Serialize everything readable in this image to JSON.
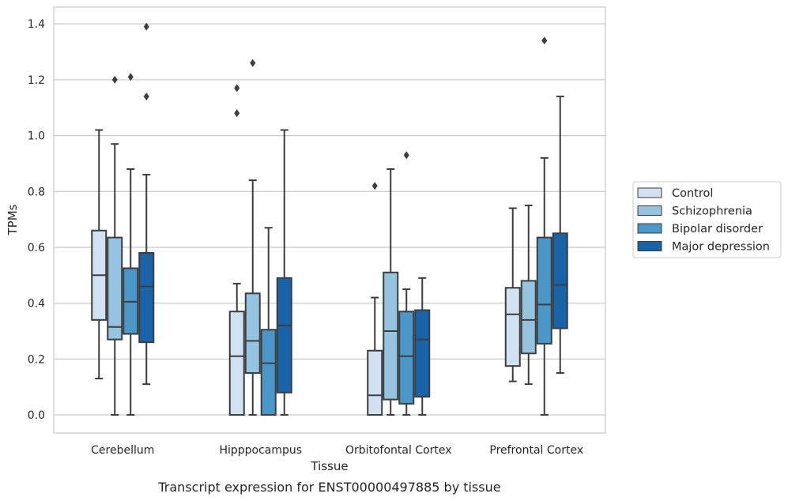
{
  "caption": "Transcript expression for ENST00000497885 by tissue",
  "chart_data": {
    "type": "box",
    "xlabel": "Tissue",
    "ylabel": "TPMs",
    "ylim": [
      -0.065,
      1.46
    ],
    "yticks": [
      0.0,
      0.2,
      0.4,
      0.6,
      0.8,
      1.0,
      1.2,
      1.4
    ],
    "grid": "horizontal",
    "legend_position": "right",
    "categories": [
      "Cerebellum",
      "Hipppocampus",
      "Orbitofontal Cortex",
      "Prefrontal Cortex"
    ],
    "series": [
      {
        "name": "Control",
        "color": "#d0e1f2",
        "boxes": [
          {
            "whislo": 0.13,
            "q1": 0.34,
            "med": 0.5,
            "q3": 0.66,
            "whishi": 1.02,
            "fliers": []
          },
          {
            "whislo": 0.0,
            "q1": 0.0,
            "med": 0.21,
            "q3": 0.37,
            "whishi": 0.47,
            "fliers": [
              1.08,
              1.17
            ]
          },
          {
            "whislo": 0.0,
            "q1": 0.0,
            "med": 0.07,
            "q3": 0.23,
            "whishi": 0.42,
            "fliers": [
              0.82
            ]
          },
          {
            "whislo": 0.12,
            "q1": 0.175,
            "med": 0.36,
            "q3": 0.455,
            "whishi": 0.74,
            "fliers": []
          }
        ]
      },
      {
        "name": "Schizophrenia",
        "color": "#94c4df",
        "boxes": [
          {
            "whislo": 0.0,
            "q1": 0.27,
            "med": 0.315,
            "q3": 0.635,
            "whishi": 0.97,
            "fliers": [
              1.2
            ]
          },
          {
            "whislo": 0.0,
            "q1": 0.15,
            "med": 0.265,
            "q3": 0.435,
            "whishi": 0.84,
            "fliers": [
              1.26
            ]
          },
          {
            "whislo": 0.0,
            "q1": 0.055,
            "med": 0.3,
            "q3": 0.51,
            "whishi": 0.88,
            "fliers": []
          },
          {
            "whislo": 0.11,
            "q1": 0.22,
            "med": 0.34,
            "q3": 0.48,
            "whishi": 0.75,
            "fliers": []
          }
        ]
      },
      {
        "name": "Bipolar disorder",
        "color": "#4a98c9",
        "boxes": [
          {
            "whislo": 0.0,
            "q1": 0.29,
            "med": 0.405,
            "q3": 0.525,
            "whishi": 0.88,
            "fliers": [
              1.21
            ]
          },
          {
            "whislo": 0.0,
            "q1": 0.0,
            "med": 0.185,
            "q3": 0.305,
            "whishi": 0.67,
            "fliers": []
          },
          {
            "whislo": 0.0,
            "q1": 0.04,
            "med": 0.21,
            "q3": 0.37,
            "whishi": 0.45,
            "fliers": [
              0.93
            ]
          },
          {
            "whislo": 0.0,
            "q1": 0.255,
            "med": 0.395,
            "q3": 0.635,
            "whishi": 0.92,
            "fliers": [
              1.34
            ]
          }
        ]
      },
      {
        "name": "Major depression",
        "color": "#1764ab",
        "boxes": [
          {
            "whislo": 0.11,
            "q1": 0.26,
            "med": 0.46,
            "q3": 0.58,
            "whishi": 0.86,
            "fliers": [
              1.14,
              1.39
            ]
          },
          {
            "whislo": 0.0,
            "q1": 0.08,
            "med": 0.32,
            "q3": 0.49,
            "whishi": 1.02,
            "fliers": []
          },
          {
            "whislo": 0.0,
            "q1": 0.065,
            "med": 0.27,
            "q3": 0.375,
            "whishi": 0.49,
            "fliers": []
          },
          {
            "whislo": 0.15,
            "q1": 0.31,
            "med": 0.465,
            "q3": 0.65,
            "whishi": 1.14,
            "fliers": []
          }
        ]
      }
    ]
  }
}
